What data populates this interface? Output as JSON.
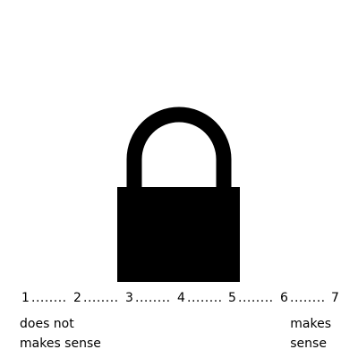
{
  "stimulus": {
    "icon": "padlock-icon",
    "color": "#000000"
  },
  "rating_scale": {
    "points": [
      "1",
      "2",
      "3",
      "4",
      "5",
      "6",
      "7"
    ],
    "separator": "........",
    "low_anchor": {
      "line1": "does not",
      "line2": "makes sense"
    },
    "high_anchor": {
      "line1": "makes",
      "line2": "sense"
    }
  }
}
